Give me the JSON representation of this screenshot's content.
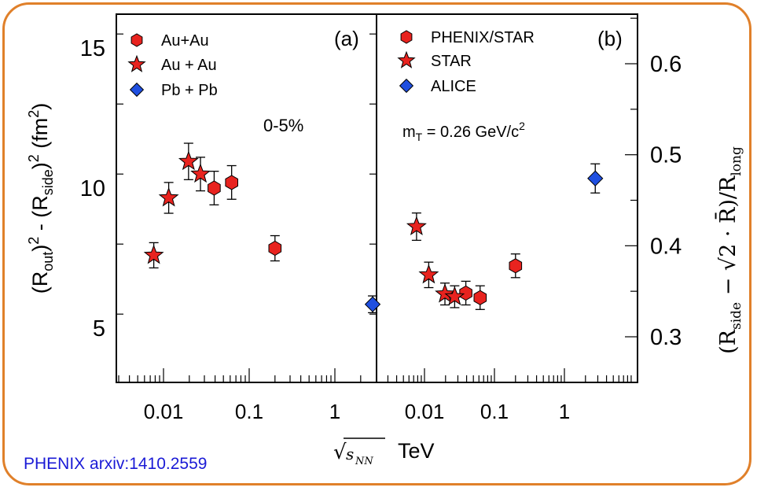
{
  "credit": "PHENIX arxiv:1410.2559",
  "colors": {
    "frame": "#e0802a",
    "red_marker": "#e8231f",
    "blue_marker": "#1f4fe0",
    "credit_text": "#1a1ad6"
  },
  "chart_data": [
    {
      "type": "scatter",
      "panel_label": "(a)",
      "annotation": "0-5%",
      "ylabel": "(Rout)2 - (Rside)2 (fm2)",
      "xlabel": "√sNN TeV",
      "x_scale": "log",
      "ylim": [
        3,
        16
      ],
      "y_ticks": [
        5,
        10,
        15
      ],
      "y_tick_labels": [
        "5",
        "10",
        "15"
      ],
      "x_ticks": [
        0.01,
        0.1,
        1
      ],
      "x_tick_labels": [
        "0.01",
        "0.1",
        "1"
      ],
      "legend_position": "top-left",
      "series": [
        {
          "name": "Au+Au",
          "marker": "hexagon",
          "color": "#e8231f",
          "points": [
            {
              "x": 0.039,
              "y": 10.0,
              "err": 0.6
            },
            {
              "x": 0.0624,
              "y": 10.2,
              "err": 0.6
            },
            {
              "x": 0.2,
              "y": 7.85,
              "err": 0.45
            }
          ]
        },
        {
          "name": "Au + Au",
          "marker": "star",
          "color": "#e8231f",
          "points": [
            {
              "x": 0.0077,
              "y": 7.6,
              "err": 0.45
            },
            {
              "x": 0.0115,
              "y": 9.65,
              "err": 0.55
            },
            {
              "x": 0.0196,
              "y": 10.95,
              "err": 0.65
            },
            {
              "x": 0.027,
              "y": 10.5,
              "err": 0.6
            }
          ]
        },
        {
          "name": "Pb + Pb",
          "marker": "diamond",
          "color": "#1f4fe0",
          "points": [
            {
              "x": 2.76,
              "y": 5.85,
              "err": 0.3
            }
          ]
        }
      ]
    },
    {
      "type": "scatter",
      "panel_label": "(b)",
      "annotation": "mT = 0.26 GeV/c2",
      "ylabel": "(Rside − √2 · R̄)/Rlong",
      "xlabel": "√sNN TeV",
      "x_scale": "log",
      "ylim": [
        0.25,
        0.65
      ],
      "y_ticks": [
        0.3,
        0.4,
        0.5,
        0.6
      ],
      "y_tick_labels": [
        "0.3",
        "0.4",
        "0.5",
        "0.6"
      ],
      "x_ticks": [
        0.01,
        0.1,
        1
      ],
      "x_tick_labels": [
        "0.01",
        "0.1",
        "1"
      ],
      "legend_position": "top-left",
      "series": [
        {
          "name": "PHENIX/STAR",
          "marker": "hexagon",
          "color": "#e8231f",
          "points": [
            {
              "x": 0.039,
              "y": 0.348,
              "err": 0.013
            },
            {
              "x": 0.0624,
              "y": 0.343,
              "err": 0.013
            },
            {
              "x": 0.2,
              "y": 0.378,
              "err": 0.013
            }
          ]
        },
        {
          "name": "STAR",
          "marker": "star",
          "color": "#e8231f",
          "points": [
            {
              "x": 0.0077,
              "y": 0.421,
              "err": 0.015
            },
            {
              "x": 0.0115,
              "y": 0.368,
              "err": 0.014
            },
            {
              "x": 0.0196,
              "y": 0.347,
              "err": 0.012
            },
            {
              "x": 0.027,
              "y": 0.344,
              "err": 0.012
            }
          ]
        },
        {
          "name": "ALICE",
          "marker": "diamond",
          "color": "#1f4fe0",
          "points": [
            {
              "x": 2.76,
              "y": 0.474,
              "err": 0.016
            }
          ]
        }
      ]
    }
  ]
}
